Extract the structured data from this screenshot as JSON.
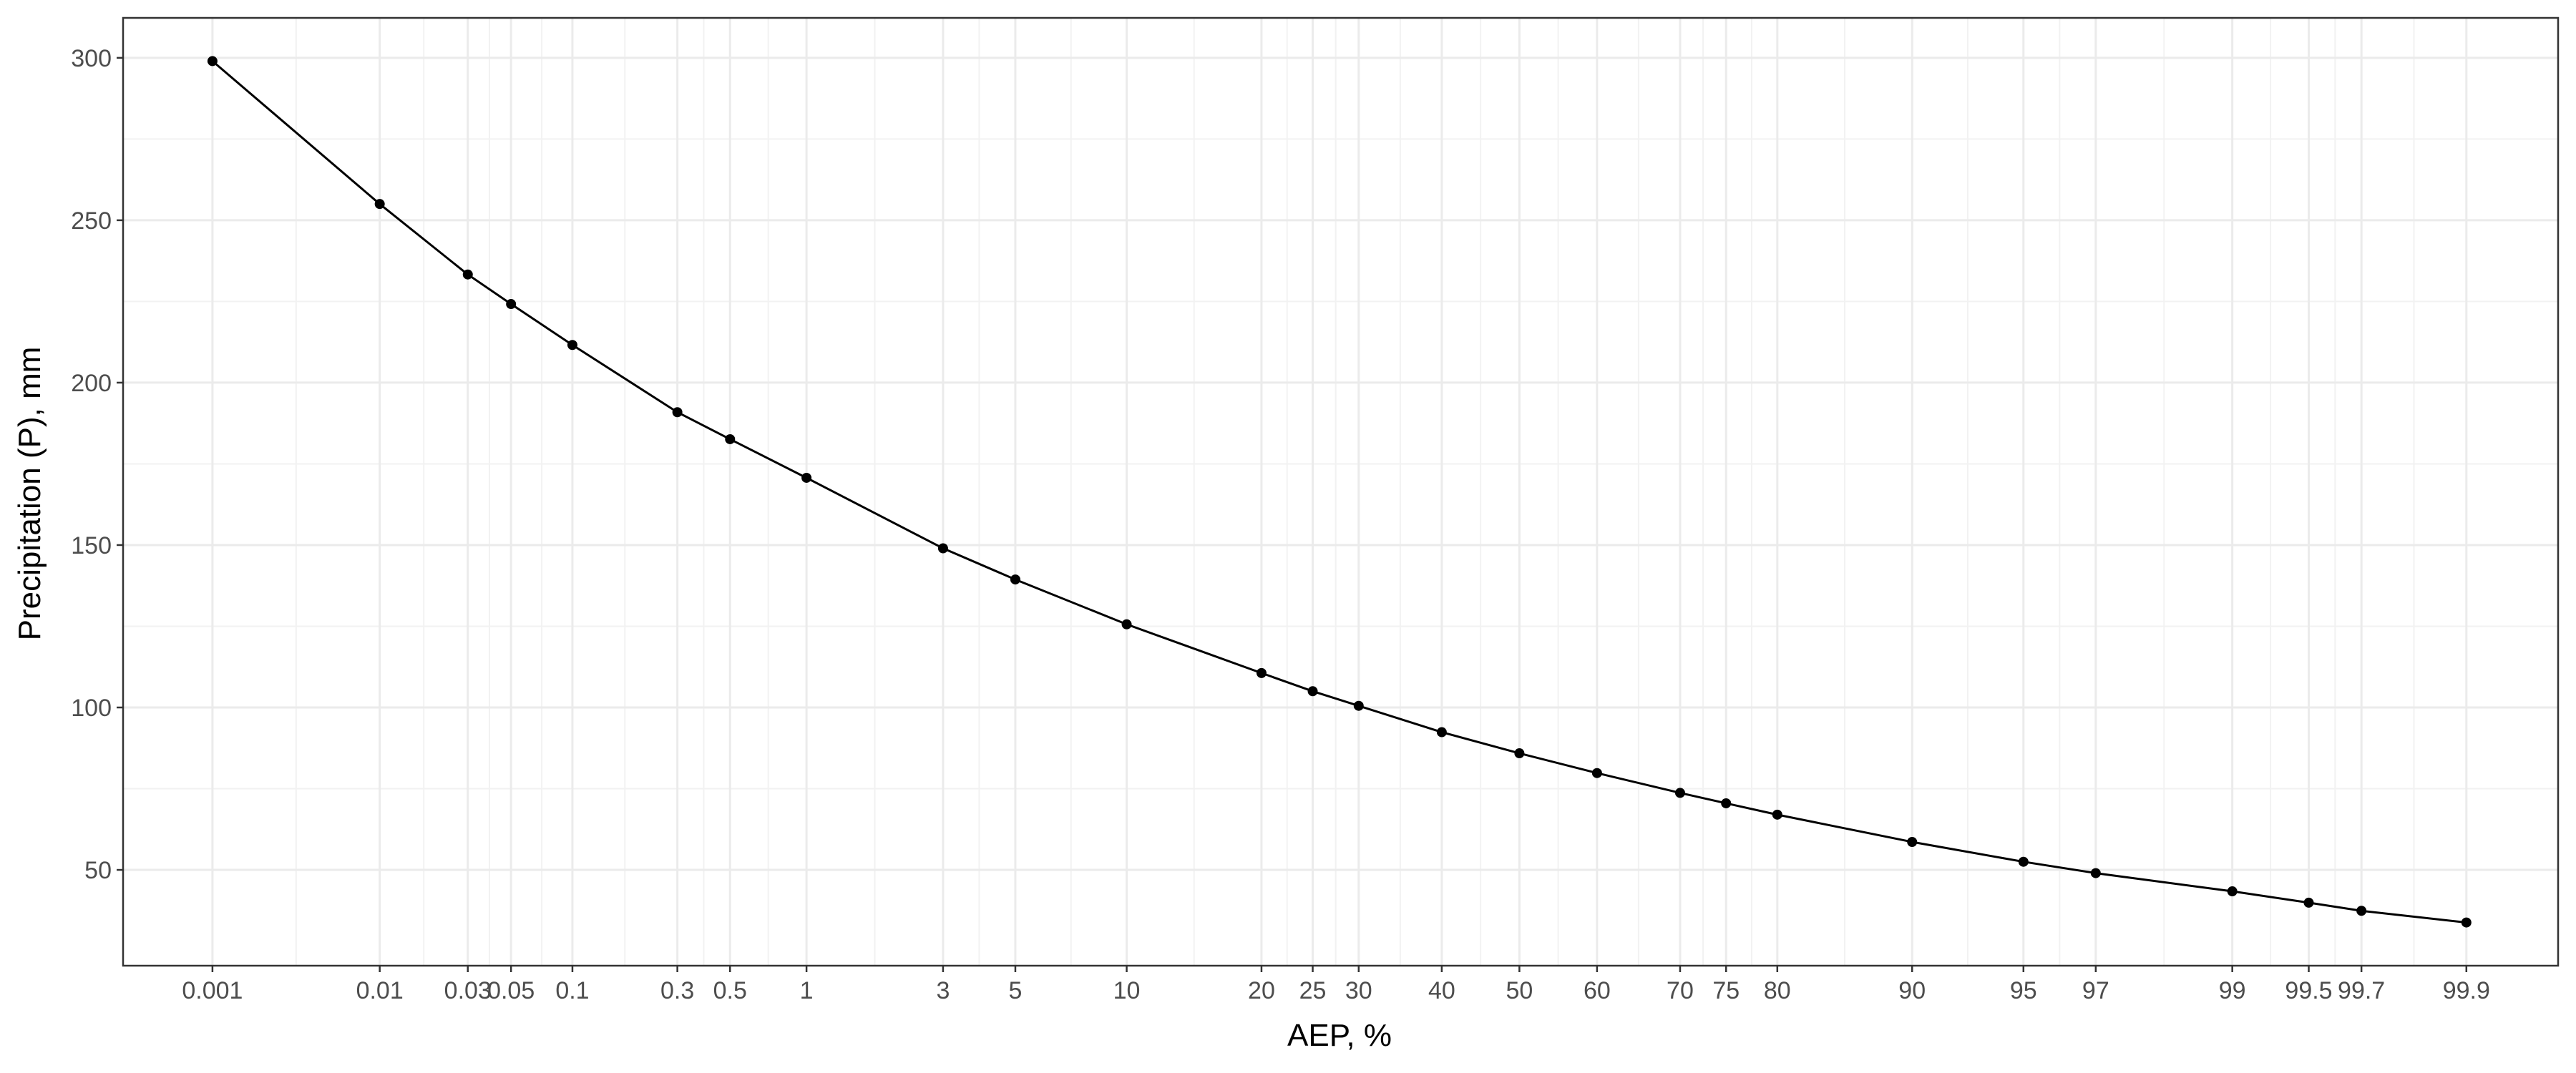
{
  "chart_data": {
    "type": "line",
    "x_label": "AEP, %",
    "y_label": "Precipitation (P), mm",
    "x_scale": "probability",
    "x": [
      0.001,
      0.01,
      0.03,
      0.05,
      0.1,
      0.3,
      0.5,
      1,
      3,
      5,
      10,
      20,
      25,
      30,
      40,
      50,
      60,
      70,
      75,
      80,
      90,
      95,
      97,
      99,
      99.5,
      99.7,
      99.9
    ],
    "series": [
      {
        "color": "#000000",
        "values": [
          299,
          255,
          233.3,
          224.2,
          211.6,
          190.9,
          182.6,
          170.7,
          149,
          139.4,
          125.6,
          110.6,
          105,
          100.5,
          92.4,
          85.9,
          79.8,
          73.7,
          70.5,
          67,
          58.6,
          52.5,
          49,
          43.4,
          39.9,
          37.4,
          33.8
        ]
      }
    ],
    "xlim": [
      0.00026,
      99.965
    ],
    "xticks": [
      0.001,
      0.01,
      0.03,
      0.05,
      0.1,
      0.3,
      0.5,
      1,
      3,
      5,
      10,
      20,
      25,
      30,
      40,
      50,
      60,
      70,
      75,
      80,
      90,
      95,
      97,
      99,
      99.5,
      99.7,
      99.9
    ],
    "ylim": [
      20.5,
      312.3
    ],
    "yticks": [
      50,
      100,
      150,
      200,
      250,
      300
    ],
    "grid": true,
    "minor_grid": true
  }
}
